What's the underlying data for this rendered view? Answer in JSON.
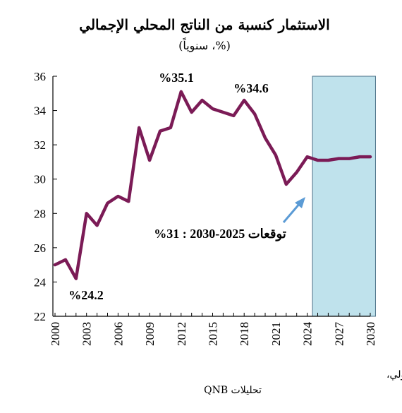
{
  "chart_data": {
    "type": "line",
    "title": "الاستثمار كنسبة من الناتج المحلي الإجمالي",
    "subtitle": "(%، سنوياً)",
    "xlabel": "",
    "ylabel": "",
    "xlim": [
      2000,
      2030
    ],
    "ylim": [
      22,
      36
    ],
    "y_ticks": [
      22,
      24,
      26,
      28,
      30,
      32,
      34,
      36
    ],
    "x_ticks": [
      2000,
      2003,
      2006,
      2009,
      2012,
      2015,
      2018,
      2021,
      2024,
      2027,
      2030
    ],
    "grid": false,
    "legend": "none",
    "line_color": "#7B1B56",
    "forecast_region": {
      "x_start": 2024.5,
      "x_end": 2030.5,
      "color": "#BFE2EC",
      "border_color": "#4A6F86"
    },
    "x": [
      2000,
      2001,
      2002,
      2003,
      2004,
      2005,
      2006,
      2007,
      2008,
      2009,
      2010,
      2011,
      2012,
      2013,
      2014,
      2015,
      2016,
      2017,
      2018,
      2019,
      2020,
      2021,
      2022,
      2023,
      2024,
      2025,
      2026,
      2027,
      2028,
      2029,
      2030
    ],
    "values": [
      25.0,
      25.3,
      24.2,
      28.0,
      27.3,
      28.6,
      29.0,
      28.7,
      33.0,
      31.1,
      32.8,
      33.0,
      35.1,
      33.9,
      34.6,
      34.1,
      33.9,
      33.7,
      34.6,
      33.8,
      32.4,
      31.4,
      29.7,
      30.4,
      31.3,
      31.1,
      31.1,
      31.2,
      31.2,
      31.3,
      31.3
    ],
    "annotations": [
      {
        "text": "%35.1",
        "x": 2012,
        "y": 35.1
      },
      {
        "text": "%34.6",
        "x": 2018,
        "y": 34.6
      },
      {
        "text": "%24.2",
        "x": 2002,
        "y": 24.2
      },
      {
        "text": "توقعات 2025-2030 : 31%",
        "arrow_color": "#5B9BD5"
      }
    ],
    "source": "المصادر: تقرير آفاق الاقتصاد العالمي الصادر عن صندوق النقد الدولي،",
    "source_line2": "تحليلات QNB"
  }
}
